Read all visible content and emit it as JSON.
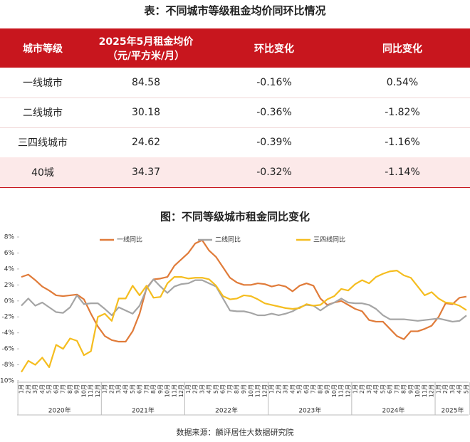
{
  "table": {
    "title": "表：不同城市等级租金均价同环比情况",
    "header": [
      "城市等级",
      "2025年5月租金均价",
      "环比变化",
      "同比变化"
    ],
    "header_unit": "（元/平方米/月）",
    "rows": [
      [
        "一线城市",
        "84.58",
        "-0.16%",
        "0.54%"
      ],
      [
        "二线城市",
        "30.18",
        "-0.36%",
        "-1.82%"
      ],
      [
        "三四线城市",
        "24.62",
        "-0.39%",
        "-1.16%"
      ],
      [
        "40城",
        "34.37",
        "-0.32%",
        "-1.14%"
      ]
    ]
  },
  "chart_data": {
    "type": "line",
    "title": "图：不同等级城市租金同比变化",
    "categories": [
      "1月",
      "2月",
      "3月",
      "4月",
      "5月",
      "6月",
      "7月",
      "8月",
      "9月",
      "10月",
      "11月",
      "12月",
      "1月",
      "2月",
      "3月",
      "4月",
      "5月",
      "6月",
      "7月",
      "8月",
      "9月",
      "10月",
      "11月",
      "12月",
      "1月",
      "2月",
      "3月",
      "4月",
      "5月",
      "6月",
      "7月",
      "8月",
      "9月",
      "10月",
      "11月",
      "12月",
      "1月",
      "2月",
      "3月",
      "4月",
      "5月",
      "6月",
      "7月",
      "8月",
      "9月",
      "10月",
      "11月",
      "12月",
      "1月",
      "2月",
      "3月",
      "4月",
      "5月",
      "6月",
      "7月",
      "8月",
      "9月",
      "10月",
      "11月",
      "12月",
      "1月",
      "2月",
      "3月",
      "4月",
      "5月"
    ],
    "year_labels": [
      "2020年",
      "2021年",
      "2022年",
      "2023年",
      "2024年",
      "2025年"
    ],
    "series": [
      {
        "name": "一线同比",
        "color": "#e07b39",
        "values": [
          3.0,
          3.3,
          2.6,
          1.8,
          1.3,
          0.7,
          0.6,
          0.7,
          0.8,
          0.2,
          -1.6,
          -3.2,
          -4.4,
          -4.9,
          -5.1,
          -5.1,
          -3.8,
          -1.6,
          1.6,
          2.7,
          2.8,
          3.0,
          4.4,
          5.2,
          6.0,
          7.2,
          7.6,
          6.3,
          5.5,
          4.2,
          2.9,
          2.3,
          2.0,
          2.0,
          2.2,
          2.1,
          1.8,
          2.0,
          1.8,
          1.2,
          1.9,
          2.2,
          1.9,
          0.3,
          -0.5,
          -0.2,
          0.0,
          -0.5,
          -1.0,
          -1.3,
          -2.4,
          -2.6,
          -2.6,
          -3.5,
          -4.4,
          -4.8,
          -3.8,
          -3.8,
          -3.5,
          -3.1,
          -2.0,
          -0.3,
          -0.4,
          0.4,
          0.54
        ]
      },
      {
        "name": "二线同比",
        "color": "#a5a5a5",
        "values": [
          -0.6,
          0.3,
          -0.6,
          -0.2,
          -0.8,
          -1.4,
          -1.5,
          -0.8,
          0.7,
          -0.4,
          -0.3,
          -0.3,
          -1.0,
          -1.8,
          -0.8,
          -1.2,
          -1.6,
          -0.6,
          1.5,
          2.7,
          1.8,
          1.0,
          1.8,
          2.1,
          2.2,
          2.6,
          2.6,
          2.2,
          1.8,
          0.3,
          -1.2,
          -1.3,
          -1.3,
          -1.5,
          -1.8,
          -1.8,
          -1.6,
          -1.8,
          -1.6,
          -1.3,
          -0.8,
          -0.5,
          -0.6,
          -1.2,
          -0.6,
          -0.2,
          0.3,
          -0.2,
          -0.3,
          -0.3,
          -0.5,
          -1.0,
          -1.8,
          -2.3,
          -2.3,
          -2.3,
          -2.4,
          -2.5,
          -2.4,
          -2.3,
          -2.2,
          -2.4,
          -2.6,
          -2.5,
          -1.82
        ]
      },
      {
        "name": "三四线同比",
        "color": "#f5bd1f",
        "values": [
          -8.9,
          -7.5,
          -8.0,
          -7.1,
          -8.3,
          -5.5,
          -6.0,
          -4.7,
          -5.0,
          -6.8,
          -6.3,
          -2.0,
          -1.6,
          -2.5,
          0.3,
          0.3,
          1.9,
          0.7,
          1.9,
          0.4,
          0.5,
          2.2,
          3.0,
          3.0,
          2.8,
          2.9,
          2.9,
          2.7,
          1.9,
          0.6,
          0.2,
          0.3,
          0.7,
          0.6,
          0.2,
          -0.3,
          -0.5,
          -0.7,
          -0.9,
          -1.0,
          -0.9,
          -0.4,
          -0.6,
          -0.5,
          0.2,
          0.6,
          1.5,
          1.3,
          2.1,
          2.6,
          2.2,
          3.0,
          3.4,
          3.7,
          3.8,
          3.2,
          2.9,
          1.8,
          0.7,
          1.1,
          0.3,
          -0.2,
          -0.3,
          -0.6,
          -1.16
        ]
      }
    ],
    "ylim": [
      -10,
      8
    ],
    "yticks": [
      {
        "value": 8,
        "label": "8%"
      },
      {
        "value": 6,
        "label": "6%"
      },
      {
        "value": 4,
        "label": "4%"
      },
      {
        "value": 2,
        "label": "2%"
      },
      {
        "value": 0,
        "label": "0%"
      },
      {
        "value": -2,
        "label": "-2%"
      },
      {
        "value": -4,
        "label": "-4%"
      },
      {
        "value": -6,
        "label": "-6%"
      },
      {
        "value": -8,
        "label": "-8%"
      },
      {
        "value": -10,
        "label": "-10%"
      }
    ],
    "source": "数据来源：麟评居住大数据研究院"
  }
}
